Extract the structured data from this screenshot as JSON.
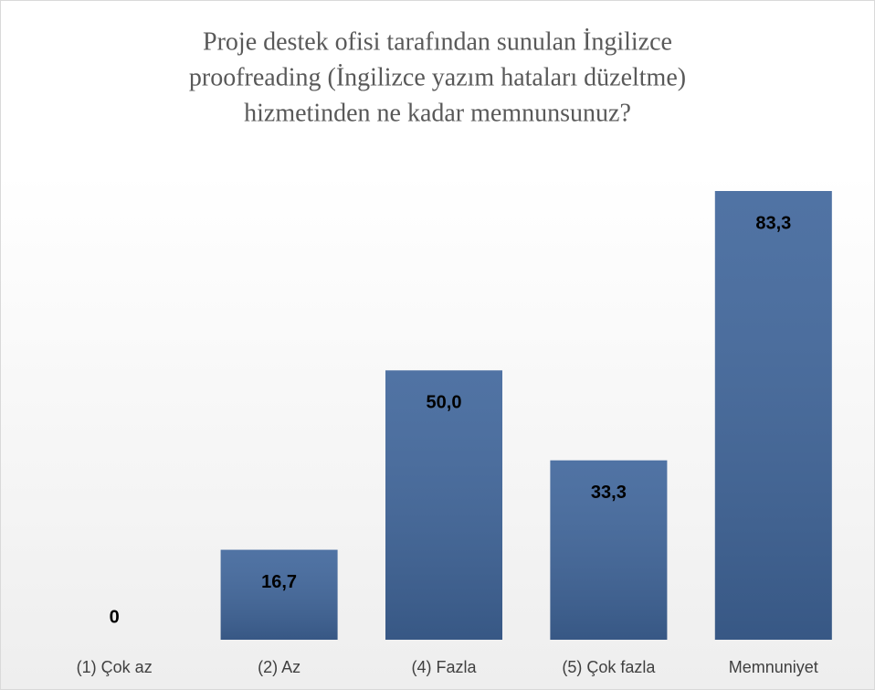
{
  "chart_data": {
    "type": "bar",
    "title": [
      "Proje destek ofisi tarafından sunulan İngilizce",
      "proofreading (İngilizce yazım hataları düzeltme)",
      "hizmetinden ne kadar memnunsunuz?"
    ],
    "categories": [
      "(1) Çok az",
      "(2) Az",
      "(4) Fazla",
      "(5) Çok fazla",
      "Memnuniyet"
    ],
    "values": [
      0,
      16.7,
      50.0,
      33.3,
      83.3
    ],
    "value_labels": [
      "0",
      "16,7",
      "50,0",
      "33,3",
      "83,3"
    ],
    "color": "#41679c"
  }
}
